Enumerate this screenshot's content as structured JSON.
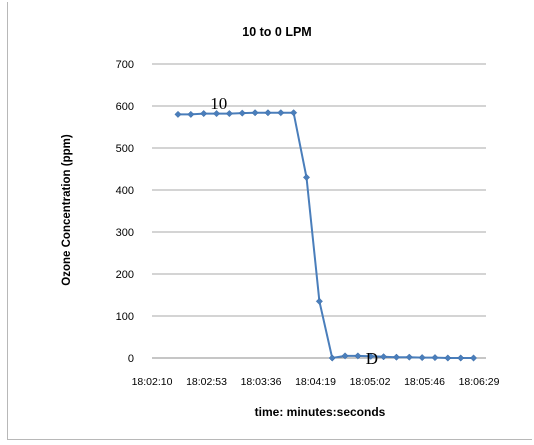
{
  "chart_data": {
    "type": "line",
    "title": "10 to 0 LPM",
    "xlabel": "time: minutes:seconds",
    "ylabel": "Ozone Concentration (ppm)",
    "ylim": [
      0,
      700
    ],
    "yticks": [
      0,
      100,
      200,
      300,
      400,
      500,
      600,
      700
    ],
    "xticks": [
      "18:02:10",
      "18:02:53",
      "18:03:36",
      "18:04:19",
      "18:05:02",
      "18:05:46",
      "18:06:29"
    ],
    "grid": true,
    "series": [
      {
        "values": [
          580,
          580,
          582,
          582,
          582,
          583,
          584,
          584,
          584,
          584,
          430,
          135,
          0,
          5,
          5,
          4,
          3,
          2,
          2,
          1,
          1,
          0,
          0,
          0
        ]
      }
    ],
    "annotations": [
      {
        "text": "10",
        "at_index": 2,
        "at_value": 600
      },
      {
        "text": "D",
        "at_index": 14,
        "at_value": 0
      }
    ]
  }
}
